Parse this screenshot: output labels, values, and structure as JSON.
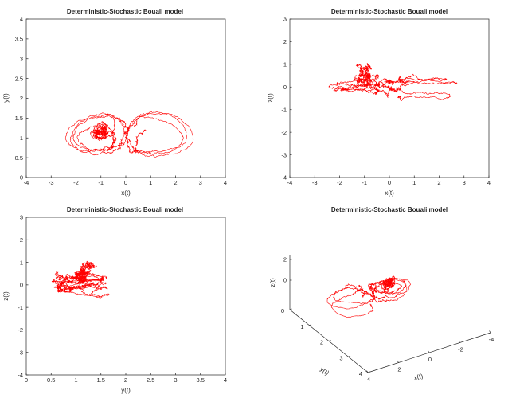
{
  "chart_data": [
    {
      "type": "line",
      "title": "Deterministic-Stochastic Bouali model",
      "xlabel": "x(t)",
      "ylabel": "y(t)",
      "xlim": [
        -4,
        4
      ],
      "ylim": [
        0,
        4
      ],
      "xticks": [
        -4,
        -3,
        -2,
        -1,
        0,
        1,
        2,
        3,
        4
      ],
      "yticks": [
        0,
        0.5,
        1,
        1.5,
        2,
        2.5,
        3,
        3.5,
        4
      ],
      "xtick_labels": [
        "-4",
        "-3",
        "-2",
        "-1",
        "0",
        "1",
        "2",
        "3",
        "4"
      ],
      "ytick_labels": [
        "0",
        "0.5",
        "1",
        "1.5",
        "2",
        "2.5",
        "3",
        "3.5",
        "4"
      ],
      "grid": false,
      "series_color": "#ff0000"
    },
    {
      "type": "line",
      "title": "Deterministic-Stochastic Bouali model",
      "xlabel": "x(t)",
      "ylabel": "z(t)",
      "xlim": [
        -4,
        4
      ],
      "ylim": [
        -4,
        3
      ],
      "xticks": [
        -4,
        -3,
        -2,
        -1,
        0,
        1,
        2,
        3,
        4
      ],
      "yticks": [
        -4,
        -3,
        -2,
        -1,
        0,
        1,
        2,
        3
      ],
      "xtick_labels": [
        "-4",
        "-3",
        "-2",
        "-1",
        "0",
        "1",
        "2",
        "3",
        "4"
      ],
      "ytick_labels": [
        "-4",
        "-3",
        "-2",
        "-1",
        "0",
        "1",
        "2",
        "3"
      ],
      "grid": false,
      "series_color": "#ff0000"
    },
    {
      "type": "line",
      "title": "Deterministic-Stochastic Bouali model",
      "xlabel": "y(t)",
      "ylabel": "z(t)",
      "xlim": [
        0,
        4
      ],
      "ylim": [
        -4,
        3
      ],
      "xticks": [
        0,
        0.5,
        1,
        1.5,
        2,
        2.5,
        3,
        3.5,
        4
      ],
      "yticks": [
        -4,
        -3,
        -2,
        -1,
        0,
        1,
        2,
        3
      ],
      "xtick_labels": [
        "0",
        "0.5",
        "1",
        "1.5",
        "2",
        "2.5",
        "3",
        "3.5",
        "4"
      ],
      "ytick_labels": [
        "-4",
        "-3",
        "-2",
        "-1",
        "0",
        "1",
        "2",
        "3"
      ],
      "grid": false,
      "series_color": "#ff0000"
    },
    {
      "type": "line",
      "title": "Deterministic-Stochastic Bouali model",
      "xlabel": "x(t)",
      "ylabel": "y(t)",
      "zlabel": "z(t)",
      "projection": "3d",
      "xticks": [
        4,
        2,
        0,
        -2,
        -4
      ],
      "yticks": [
        0,
        1,
        2,
        3,
        4
      ],
      "zticks": [
        0,
        2
      ],
      "xtick_labels": [
        "4",
        "2",
        "0",
        "-2",
        "-4"
      ],
      "ytick_labels": [
        "0",
        "1",
        "2",
        "3",
        "4"
      ],
      "ztick_labels": [
        "0",
        "2"
      ],
      "grid": false,
      "series_color": "#ff0000"
    }
  ]
}
